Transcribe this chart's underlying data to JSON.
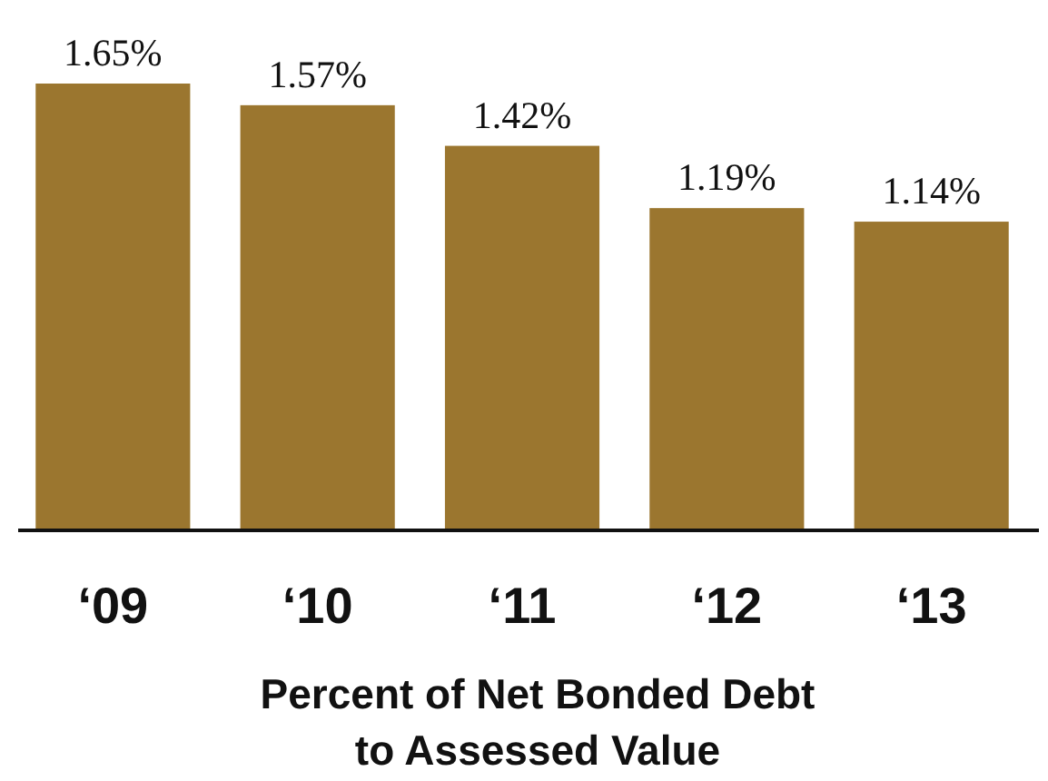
{
  "chart_data": {
    "type": "bar",
    "xlabel": "Percent of Net Bonded Debt\nto Assessed Value",
    "categories": [
      "‘09",
      "‘10",
      "‘11",
      "‘12",
      "‘13"
    ],
    "values": [
      1.65,
      1.57,
      1.42,
      1.19,
      1.14
    ],
    "value_labels": [
      "1.65%",
      "1.57%",
      "1.42%",
      "1.19%",
      "1.14%"
    ],
    "color": "#9b762f"
  }
}
